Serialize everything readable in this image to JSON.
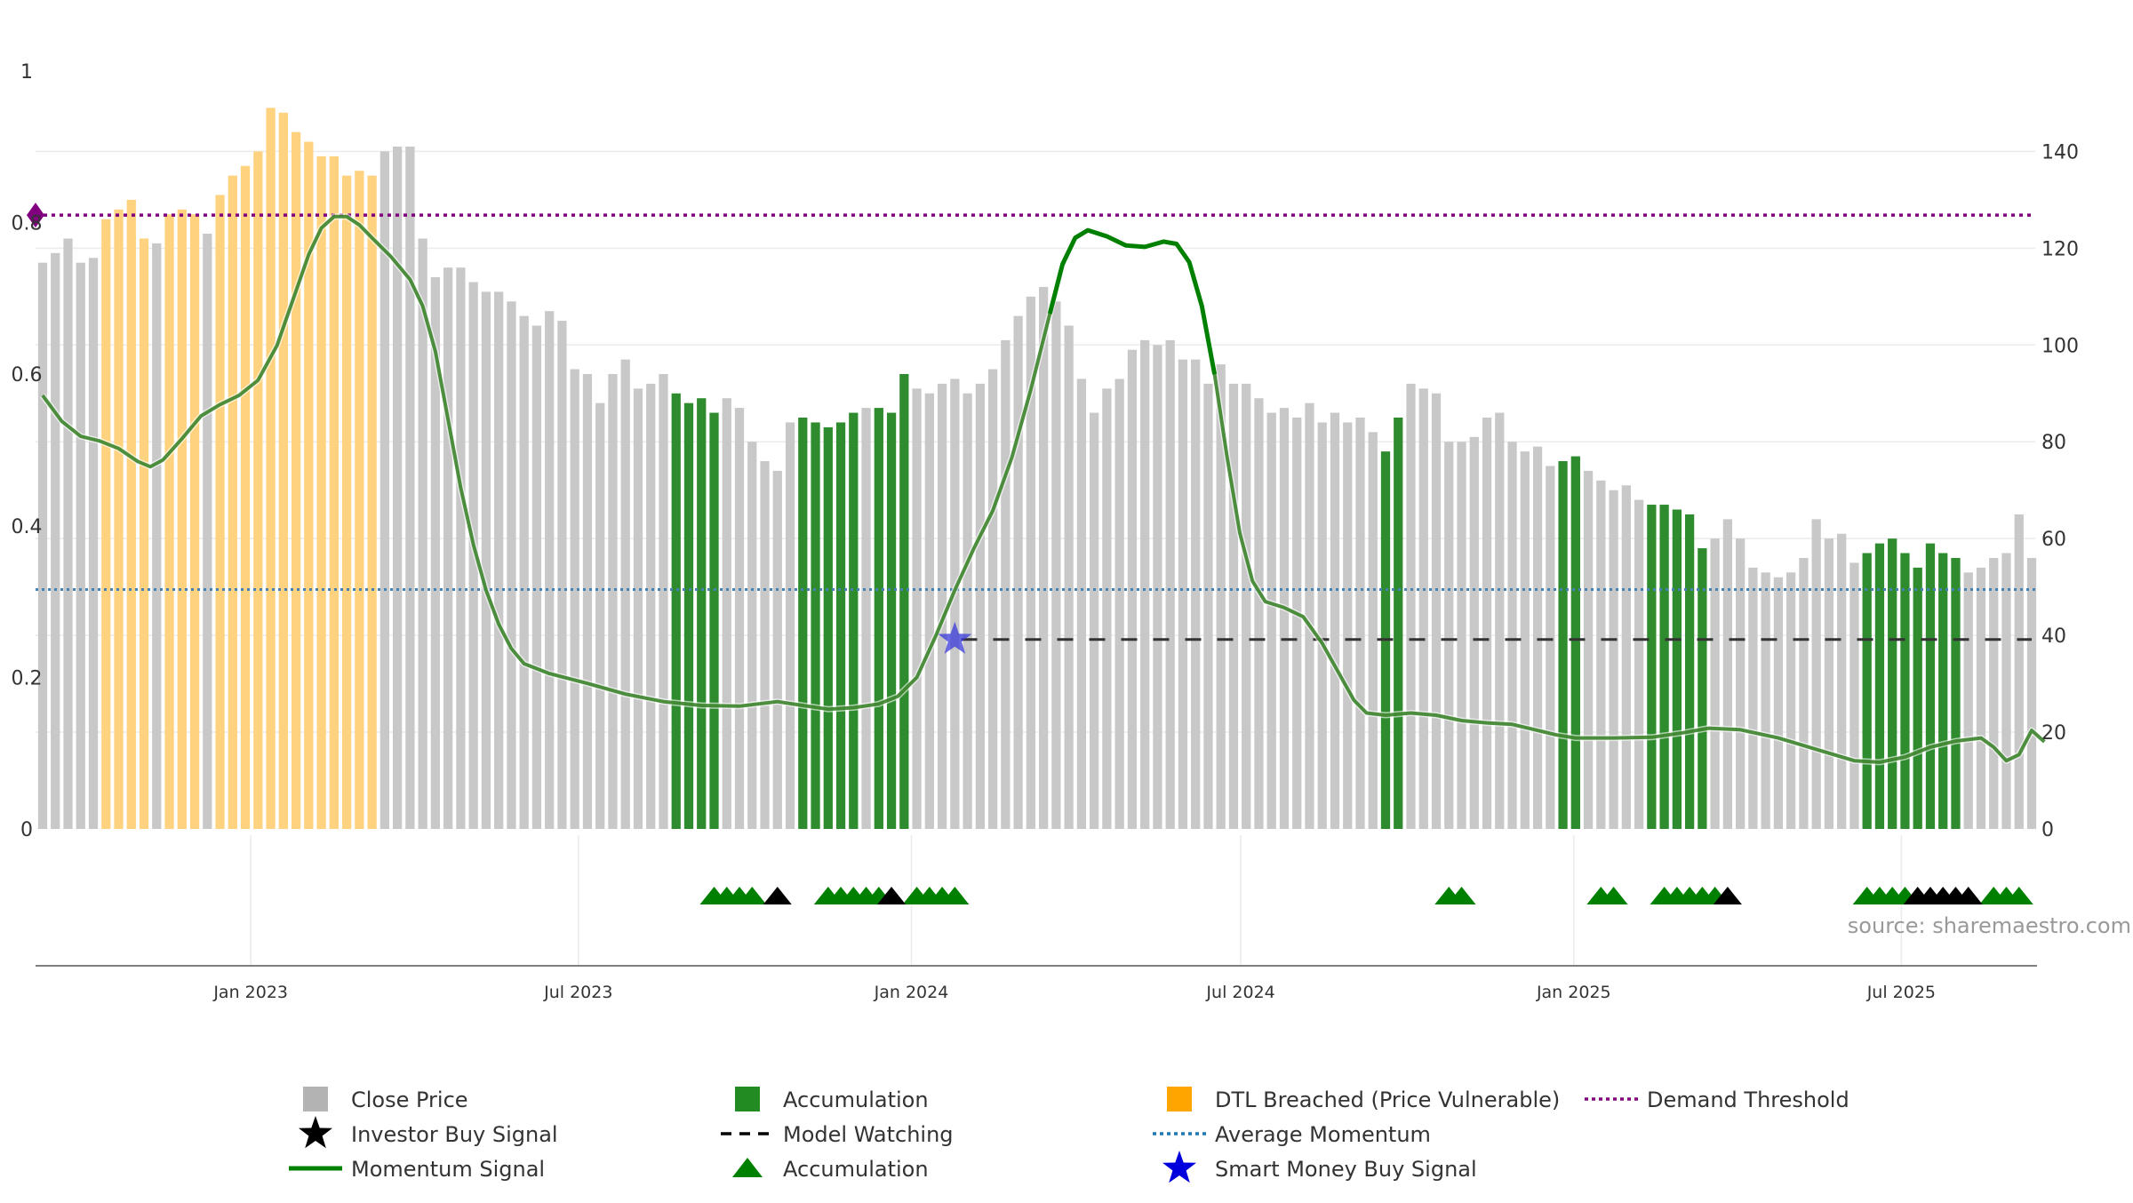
{
  "chart_data": {
    "type": "bar",
    "left_axis": {
      "ticks": [
        "0",
        "0.2",
        "0.4",
        "0.6",
        "0.8",
        "1"
      ],
      "ylim": [
        0,
        1
      ]
    },
    "right_axis": {
      "ticks": [
        "0",
        "20",
        "40",
        "60",
        "80",
        "100",
        "120",
        "140"
      ],
      "ylim": [
        0,
        156.6
      ]
    },
    "x_ticks": [
      {
        "label": "Jan 2023",
        "date": "2023-01-01"
      },
      {
        "label": "Jul 2023",
        "date": "2023-07-01"
      },
      {
        "label": "Jan 2024",
        "date": "2024-01-01"
      },
      {
        "label": "Jul 2024",
        "date": "2024-07-01"
      },
      {
        "label": "Jan 2025",
        "date": "2025-01-01"
      },
      {
        "label": "Jul 2025",
        "date": "2025-07-01"
      }
    ],
    "grid": true,
    "source": "source: sharemaestro.com",
    "bar_colors": {
      "price": "#c8c8c8",
      "accumulation": "#2e8b2e",
      "dtl": "#ffd27f"
    },
    "line_colors": {
      "momentum": "#2f7d1f",
      "momentum_strong": "#008000",
      "avg_momentum": "#4682b4",
      "demand_threshold": "#800080",
      "model_watching": "#333333"
    },
    "bars": {
      "start_date": "2022-09-08",
      "week_days": 7,
      "types": "PPPPPDDDDPDDDPDDDDDDDDDDDDDPPPPPPPPPPPPPPPPPPPPPPPAAAAPPPPPPAAAAAPAAAPPPPPPPPPPPPPPPPPPPPPPPPPPPPPPPPPPPPPAAPPPPPPPPPPPPAAPPPPPAAAAAPPPPPPPPPPPPAAAAAAAAPPP",
      "close": [
        117,
        119,
        122,
        117,
        118,
        126,
        128,
        130,
        122,
        121,
        127,
        128,
        127,
        123,
        131,
        135,
        137,
        140,
        149,
        148,
        144,
        142,
        139,
        139,
        135,
        136,
        135,
        140,
        141,
        141,
        122,
        114,
        116,
        116,
        113,
        111,
        111,
        109,
        106,
        104,
        107,
        105,
        95,
        94,
        88,
        94,
        97,
        91,
        92,
        94,
        90,
        88,
        89,
        86,
        89,
        87,
        80,
        76,
        74,
        84,
        85,
        84,
        83,
        84,
        86,
        87,
        87,
        86,
        94,
        91,
        90,
        92,
        93,
        90,
        92,
        95,
        101,
        106,
        110,
        112,
        109,
        104,
        93,
        86,
        91,
        93,
        99,
        101,
        100,
        101,
        97,
        97,
        92,
        96,
        92,
        92,
        89,
        86,
        87,
        85,
        88,
        84,
        86,
        84,
        85,
        82,
        78,
        85,
        92,
        91,
        90,
        80,
        80,
        81,
        85,
        86,
        80,
        78,
        79,
        75,
        76,
        77,
        74,
        72,
        70,
        71,
        68,
        67,
        67,
        66,
        65,
        58,
        60,
        64,
        60,
        54,
        53,
        52,
        53,
        56,
        64,
        60,
        61,
        55,
        57,
        59,
        60,
        57,
        54,
        59,
        57,
        56,
        53,
        54,
        56,
        57,
        65,
        56
      ]
    },
    "momentum": [
      [
        0.0,
        0.572
      ],
      [
        1.5,
        0.538
      ],
      [
        3.0,
        0.518
      ],
      [
        4.5,
        0.512
      ],
      [
        6.0,
        0.502
      ],
      [
        7.5,
        0.485
      ],
      [
        8.5,
        0.478
      ],
      [
        9.5,
        0.487
      ],
      [
        11.0,
        0.515
      ],
      [
        12.5,
        0.545
      ],
      [
        14.0,
        0.56
      ],
      [
        15.5,
        0.572
      ],
      [
        17.0,
        0.592
      ],
      [
        18.5,
        0.638
      ],
      [
        20.0,
        0.71
      ],
      [
        21.0,
        0.758
      ],
      [
        22.0,
        0.793
      ],
      [
        23.0,
        0.808
      ],
      [
        24.0,
        0.808
      ],
      [
        25.0,
        0.797
      ],
      [
        26.0,
        0.78
      ],
      [
        27.5,
        0.755
      ],
      [
        29.0,
        0.725
      ],
      [
        30.0,
        0.69
      ],
      [
        31.0,
        0.63
      ],
      [
        32.0,
        0.54
      ],
      [
        33.0,
        0.45
      ],
      [
        34.0,
        0.375
      ],
      [
        35.0,
        0.315
      ],
      [
        36.0,
        0.27
      ],
      [
        37.0,
        0.238
      ],
      [
        38.0,
        0.218
      ],
      [
        40.0,
        0.205
      ],
      [
        43.0,
        0.192
      ],
      [
        46.0,
        0.178
      ],
      [
        49.0,
        0.168
      ],
      [
        52.0,
        0.163
      ],
      [
        55.0,
        0.162
      ],
      [
        58.0,
        0.168
      ],
      [
        60.0,
        0.163
      ],
      [
        62.0,
        0.158
      ],
      [
        64.0,
        0.16
      ],
      [
        66.0,
        0.165
      ],
      [
        67.5,
        0.175
      ],
      [
        69.0,
        0.2
      ],
      [
        70.5,
        0.255
      ],
      [
        72.0,
        0.315
      ],
      [
        73.5,
        0.37
      ],
      [
        75.0,
        0.42
      ],
      [
        76.5,
        0.49
      ],
      [
        78.0,
        0.58
      ],
      [
        79.5,
        0.68
      ],
      [
        80.5,
        0.745
      ],
      [
        81.5,
        0.78
      ],
      [
        82.5,
        0.79
      ],
      [
        84.0,
        0.782
      ],
      [
        85.5,
        0.77
      ],
      [
        87.0,
        0.768
      ],
      [
        88.5,
        0.775
      ],
      [
        89.5,
        0.772
      ],
      [
        90.5,
        0.748
      ],
      [
        91.5,
        0.69
      ],
      [
        92.5,
        0.6
      ],
      [
        93.5,
        0.49
      ],
      [
        94.5,
        0.39
      ],
      [
        95.5,
        0.327
      ],
      [
        96.5,
        0.3
      ],
      [
        98.0,
        0.292
      ],
      [
        99.5,
        0.28
      ],
      [
        101.0,
        0.245
      ],
      [
        102.5,
        0.2
      ],
      [
        103.5,
        0.17
      ],
      [
        104.5,
        0.153
      ],
      [
        106.0,
        0.15
      ],
      [
        108.0,
        0.153
      ],
      [
        110.0,
        0.15
      ],
      [
        112.0,
        0.143
      ],
      [
        114.0,
        0.14
      ],
      [
        116.0,
        0.138
      ],
      [
        118.0,
        0.13
      ],
      [
        119.5,
        0.124
      ],
      [
        121.0,
        0.12
      ],
      [
        124.0,
        0.12
      ],
      [
        127.0,
        0.121
      ],
      [
        129.5,
        0.127
      ],
      [
        131.5,
        0.133
      ],
      [
        134.0,
        0.131
      ],
      [
        137.0,
        0.12
      ],
      [
        140.0,
        0.105
      ],
      [
        143.0,
        0.09
      ],
      [
        145.0,
        0.088
      ],
      [
        147.0,
        0.095
      ],
      [
        149.0,
        0.108
      ],
      [
        151.0,
        0.116
      ],
      [
        153.0,
        0.12
      ],
      [
        154.0,
        0.108
      ],
      [
        155.0,
        0.09
      ],
      [
        156.0,
        0.098
      ],
      [
        157.0,
        0.13
      ],
      [
        158.0,
        0.115
      ]
    ],
    "momentum_strong_range": [
      78.5,
      93.0
    ],
    "avg_momentum": 0.316,
    "demand_threshold": 0.81,
    "model_watching": {
      "value": 0.25,
      "from": 72.5,
      "to": 157.0
    },
    "smart_money_signal": {
      "bar": 72.0,
      "value": 0.25
    },
    "markers": {
      "accumulation_up": [
        53,
        54,
        55,
        56,
        62,
        63,
        64,
        65,
        66,
        69,
        70,
        71,
        72,
        111,
        112,
        123,
        124,
        128,
        129,
        130,
        131,
        132,
        144,
        145,
        146,
        147,
        154,
        155,
        156
      ],
      "investor_buy": [
        58,
        67,
        133,
        148,
        149,
        150,
        151,
        152
      ]
    },
    "legend": [
      {
        "label": "Close Price",
        "icon": "square-gray"
      },
      {
        "label": "Investor Buy Signal",
        "icon": "star-black"
      },
      {
        "label": "Momentum Signal",
        "icon": "line-green"
      },
      {
        "label": "Accumulation",
        "icon": "square-green"
      },
      {
        "label": "Model Watching",
        "icon": "dash-black"
      },
      {
        "label": "Accumulation",
        "icon": "triangle-green"
      },
      {
        "label": "DTL Breached (Price Vulnerable)",
        "icon": "square-orange"
      },
      {
        "label": "Average Momentum",
        "icon": "dotted-blue"
      },
      {
        "label": "Smart Money Buy Signal",
        "icon": "star-blue"
      },
      {
        "label": "Demand Threshold",
        "icon": "dotted-purple"
      }
    ]
  }
}
